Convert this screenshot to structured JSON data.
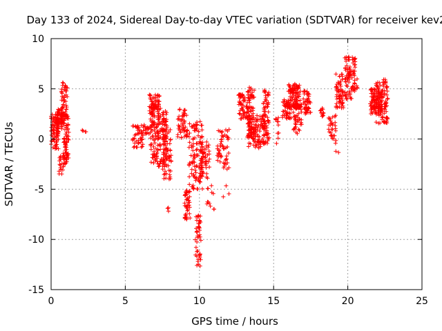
{
  "chart_data": {
    "type": "scatter",
    "title": "Day 133 of 2024, Sidereal Day-to-day VTEC variation (SDTVAR) for receiver kev2",
    "xlabel": "GPS time / hours",
    "ylabel": "SDTVAR / TECUs",
    "xlim": [
      0,
      25
    ],
    "ylim": [
      -15,
      10
    ],
    "xticks": [
      "0",
      "5",
      "10",
      "15",
      "20",
      "25"
    ],
    "yticks": [
      "-15",
      "-10",
      "-5",
      "0",
      "5",
      "10"
    ],
    "grid": true,
    "marker": "+",
    "color": "#ff0000",
    "clusters": [
      {
        "x": [
          0.0,
          0.5
        ],
        "y": [
          -1.0,
          2.5
        ],
        "n": 90
      },
      {
        "x": [
          0.4,
          0.8
        ],
        "y": [
          1.0,
          3.0
        ],
        "n": 60
      },
      {
        "x": [
          0.5,
          0.9
        ],
        "y": [
          -3.5,
          -1.5
        ],
        "n": 25
      },
      {
        "x": [
          0.7,
          1.1
        ],
        "y": [
          2.0,
          5.8
        ],
        "n": 50
      },
      {
        "x": [
          0.8,
          1.2
        ],
        "y": [
          -2.5,
          2.5
        ],
        "n": 70
      },
      {
        "x": [
          2.1,
          2.5
        ],
        "y": [
          0.7,
          0.9
        ],
        "n": 4
      },
      {
        "x": [
          5.5,
          6.2
        ],
        "y": [
          -1.0,
          1.5
        ],
        "n": 45
      },
      {
        "x": [
          6.2,
          6.8
        ],
        "y": [
          0.5,
          1.5
        ],
        "n": 20
      },
      {
        "x": [
          6.6,
          7.3
        ],
        "y": [
          2.5,
          4.6
        ],
        "n": 60
      },
      {
        "x": [
          6.7,
          7.8
        ],
        "y": [
          -3.0,
          3.5
        ],
        "n": 160
      },
      {
        "x": [
          7.5,
          8.1
        ],
        "y": [
          -4.0,
          2.0
        ],
        "n": 80
      },
      {
        "x": [
          7.7,
          8.0
        ],
        "y": [
          -7.2,
          -5.3
        ],
        "n": 3
      },
      {
        "x": [
          8.5,
          9.2
        ],
        "y": [
          0.0,
          3.0
        ],
        "n": 50
      },
      {
        "x": [
          9.0,
          9.4
        ],
        "y": [
          -8.0,
          -5.0
        ],
        "n": 45
      },
      {
        "x": [
          9.3,
          10.2
        ],
        "y": [
          -5.0,
          1.8
        ],
        "n": 100
      },
      {
        "x": [
          9.7,
          10.1
        ],
        "y": [
          -12.8,
          -7.5
        ],
        "n": 45
      },
      {
        "x": [
          10.0,
          10.7
        ],
        "y": [
          -4.0,
          0.0
        ],
        "n": 60
      },
      {
        "x": [
          10.5,
          11.0
        ],
        "y": [
          -7.0,
          -4.5
        ],
        "n": 12
      },
      {
        "x": [
          11.2,
          12.0
        ],
        "y": [
          -3.0,
          1.0
        ],
        "n": 55
      },
      {
        "x": [
          11.5,
          12.0
        ],
        "y": [
          -6.2,
          -4.5
        ],
        "n": 3
      },
      {
        "x": [
          12.6,
          13.3
        ],
        "y": [
          2.0,
          4.5
        ],
        "n": 60
      },
      {
        "x": [
          13.2,
          13.7
        ],
        "y": [
          0.0,
          5.2
        ],
        "n": 70
      },
      {
        "x": [
          13.3,
          14.4
        ],
        "y": [
          -1.0,
          2.5
        ],
        "n": 100
      },
      {
        "x": [
          14.3,
          14.7
        ],
        "y": [
          -0.5,
          5.0
        ],
        "n": 70
      },
      {
        "x": [
          15.1,
          15.4
        ],
        "y": [
          -0.5,
          2.5
        ],
        "n": 12
      },
      {
        "x": [
          15.6,
          16.2
        ],
        "y": [
          2.0,
          4.0
        ],
        "n": 45
      },
      {
        "x": [
          16.0,
          16.8
        ],
        "y": [
          3.0,
          5.5
        ],
        "n": 110
      },
      {
        "x": [
          16.3,
          16.9
        ],
        "y": [
          0.5,
          3.5
        ],
        "n": 45
      },
      {
        "x": [
          17.0,
          17.5
        ],
        "y": [
          2.5,
          4.8
        ],
        "n": 45
      },
      {
        "x": [
          18.1,
          18.4
        ],
        "y": [
          2.2,
          3.2
        ],
        "n": 12
      },
      {
        "x": [
          18.7,
          19.2
        ],
        "y": [
          -0.5,
          2.5
        ],
        "n": 30
      },
      {
        "x": [
          19.1,
          19.4
        ],
        "y": [
          -1.4,
          -1.2
        ],
        "n": 2
      },
      {
        "x": [
          19.2,
          19.7
        ],
        "y": [
          3.0,
          6.5
        ],
        "n": 60
      },
      {
        "x": [
          19.8,
          20.5
        ],
        "y": [
          4.0,
          8.2
        ],
        "n": 90
      },
      {
        "x": [
          20.6,
          20.8
        ],
        "y": [
          5.0,
          6.0
        ],
        "n": 4
      },
      {
        "x": [
          21.5,
          22.3
        ],
        "y": [
          2.5,
          5.0
        ],
        "n": 100
      },
      {
        "x": [
          21.9,
          22.7
        ],
        "y": [
          1.5,
          6.0
        ],
        "n": 90
      }
    ]
  }
}
